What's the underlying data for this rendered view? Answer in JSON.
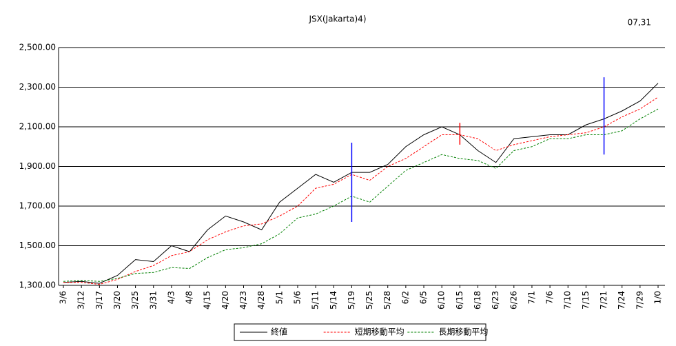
{
  "chart_data": {
    "type": "line",
    "title": "JSX(Jakarta)4)",
    "annotation": "07,31",
    "categories": [
      "3/6",
      "3/12",
      "3/17",
      "3/20",
      "3/25",
      "3/31",
      "4/3",
      "4/8",
      "4/15",
      "4/20",
      "4/23",
      "4/28",
      "5/1",
      "5/6",
      "5/11",
      "5/14",
      "5/19",
      "5/25",
      "5/28",
      "6/2",
      "6/5",
      "6/10",
      "6/15",
      "6/18",
      "6/23",
      "6/26",
      "7/1",
      "7/6",
      "7/10",
      "7/15",
      "7/21",
      "7/24",
      "7/29",
      "1/0"
    ],
    "series": [
      {
        "name": "終値",
        "color": "#000000",
        "line_style": "solid",
        "values": [
          1315,
          1320,
          1310,
          1350,
          1430,
          1420,
          1500,
          1470,
          1580,
          1650,
          1620,
          1580,
          1720,
          1790,
          1860,
          1820,
          1870,
          1870,
          1910,
          2000,
          2060,
          2100,
          2060,
          1980,
          1920,
          2040,
          2050,
          2060,
          2060,
          2110,
          2140,
          2180,
          2230,
          2320
        ]
      },
      {
        "name": "短期移動平均",
        "color": "#ff0000",
        "line_style": "dashed",
        "values": [
          1315,
          1315,
          1305,
          1330,
          1370,
          1400,
          1450,
          1470,
          1530,
          1570,
          1600,
          1610,
          1650,
          1700,
          1790,
          1810,
          1860,
          1830,
          1900,
          1940,
          2000,
          2060,
          2060,
          2040,
          1980,
          2010,
          2030,
          2050,
          2060,
          2070,
          2100,
          2150,
          2190,
          2250
        ]
      },
      {
        "name": "長期移動平均",
        "color": "#008000",
        "line_style": "dashed",
        "values": [
          1320,
          1325,
          1320,
          1335,
          1360,
          1365,
          1390,
          1385,
          1440,
          1480,
          1490,
          1510,
          1560,
          1640,
          1660,
          1700,
          1750,
          1720,
          1800,
          1880,
          1920,
          1960,
          1940,
          1930,
          1890,
          1980,
          2000,
          2040,
          2040,
          2060,
          2060,
          2080,
          2140,
          2190
        ]
      }
    ],
    "markers": [
      {
        "at": "5/19",
        "high": 2020,
        "low": 1620,
        "color": "#0000ff"
      },
      {
        "at": "6/15",
        "high": 2120,
        "low": 2010,
        "color": "#ff0000"
      },
      {
        "at": "7/21",
        "high": 2350,
        "low": 1960,
        "color": "#0000ff"
      }
    ],
    "ylim": [
      1300,
      2500
    ],
    "yticks": [
      {
        "value": 1300,
        "label": "1,300.00"
      },
      {
        "value": 1500,
        "label": "1,500.00"
      },
      {
        "value": 1700,
        "label": "1,700.00"
      },
      {
        "value": 1900,
        "label": "1,900.00"
      },
      {
        "value": 2100,
        "label": "2,100.00"
      },
      {
        "value": 2300,
        "label": "2,300.00"
      },
      {
        "value": 2500,
        "label": "2,500.00"
      }
    ],
    "grid": true,
    "legend": "bottom"
  }
}
